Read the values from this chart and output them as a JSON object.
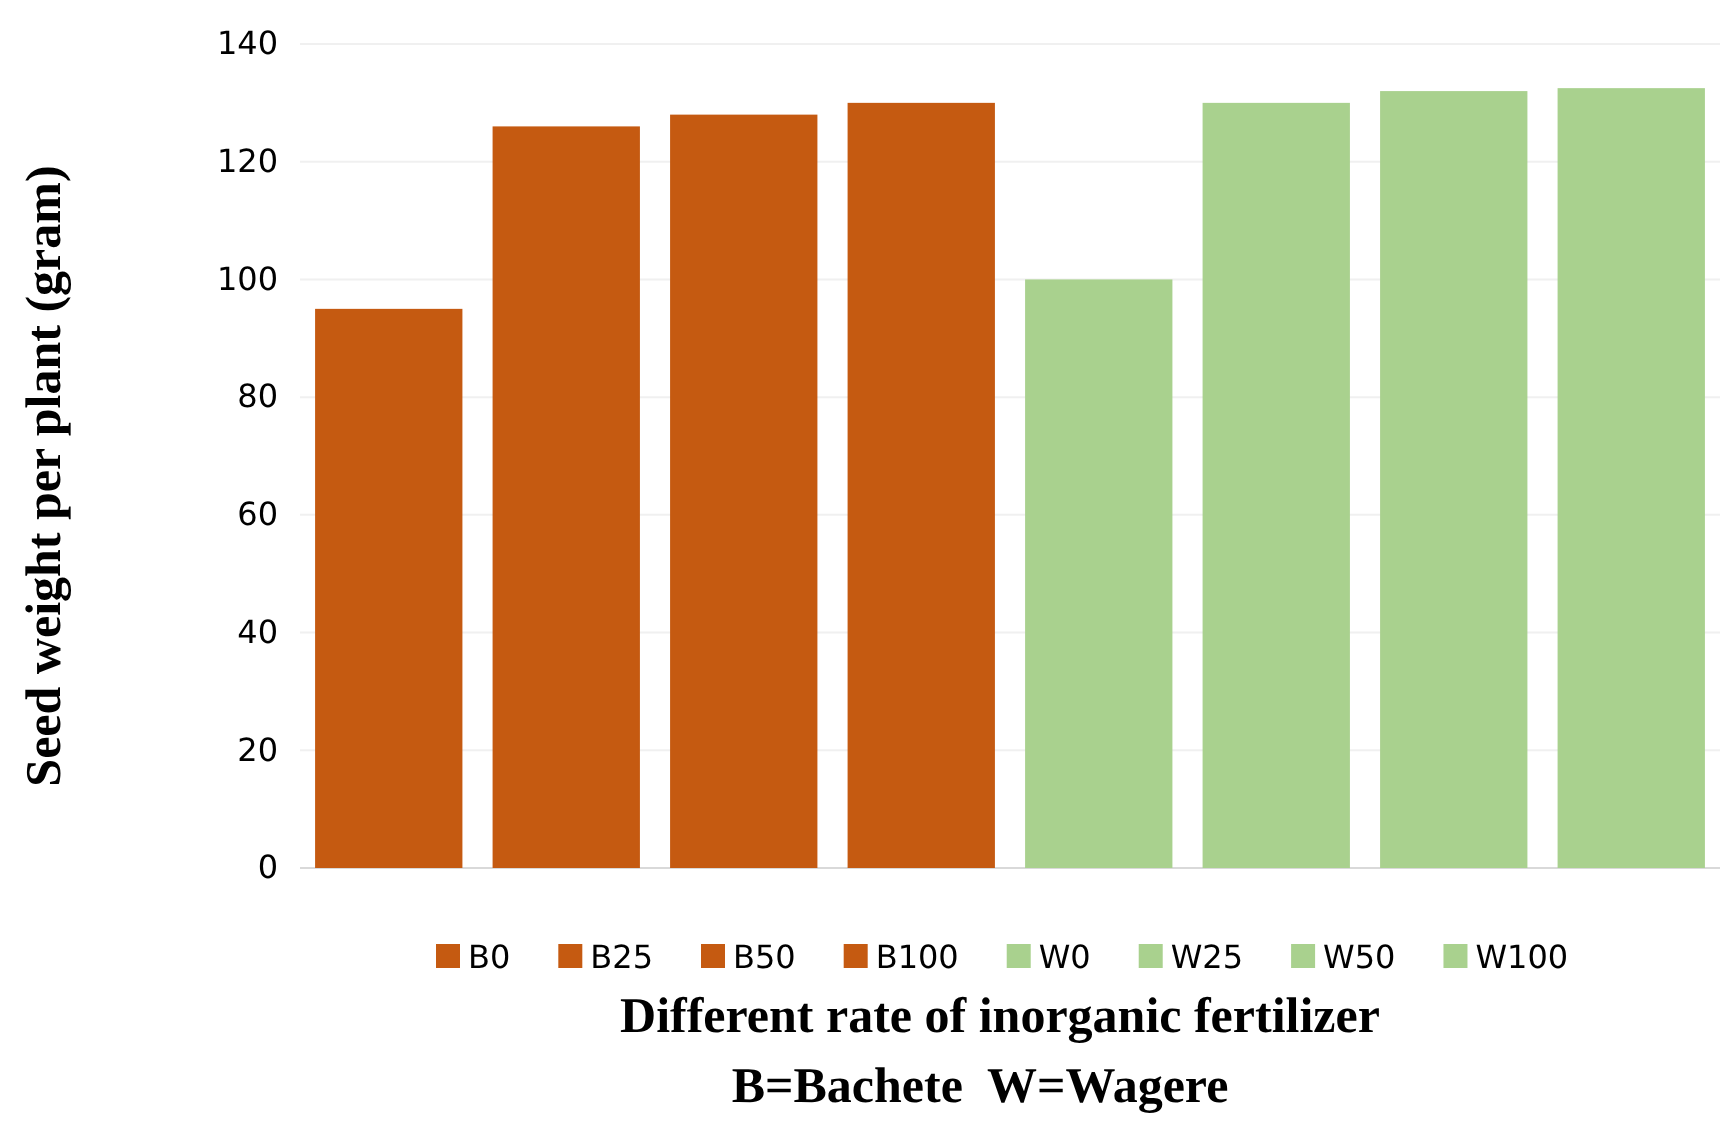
{
  "chart_data": {
    "type": "bar",
    "xlabel": "Different rate of inorganic fertilizer",
    "ylabel": "Seed weight per plant (gram)",
    "annotations": [
      "B=Bachete  W=Wagere"
    ],
    "categories": [
      null,
      null,
      null,
      null,
      null,
      null,
      null,
      null
    ],
    "series": [
      {
        "name": "B0",
        "color": "#c55a11",
        "values": [
          95,
          null,
          null,
          null,
          null,
          null,
          null,
          null
        ]
      },
      {
        "name": "B25",
        "color": "#c55a11",
        "values": [
          null,
          126,
          null,
          null,
          null,
          null,
          null,
          null
        ]
      },
      {
        "name": "B50",
        "color": "#c55a11",
        "values": [
          null,
          null,
          128,
          null,
          null,
          null,
          null,
          null
        ]
      },
      {
        "name": "B100",
        "color": "#c55a11",
        "values": [
          null,
          null,
          null,
          130,
          null,
          null,
          null,
          null
        ]
      },
      {
        "name": "W0",
        "color": "#a9d18e",
        "values": [
          null,
          null,
          null,
          null,
          100,
          null,
          null,
          null
        ]
      },
      {
        "name": "W25",
        "color": "#a9d18e",
        "values": [
          null,
          null,
          null,
          null,
          null,
          130,
          null,
          null
        ]
      },
      {
        "name": "W50",
        "color": "#a9d18e",
        "values": [
          null,
          null,
          null,
          null,
          null,
          null,
          132,
          null
        ]
      },
      {
        "name": "W100",
        "color": "#a9d18e",
        "values": [
          null,
          null,
          null,
          null,
          null,
          null,
          null,
          132.5
        ]
      }
    ],
    "ylim": [
      0,
      140
    ],
    "yticks": [
      0,
      20,
      40,
      60,
      80,
      100,
      120,
      140
    ],
    "grid": "y",
    "legend": "bottom"
  }
}
